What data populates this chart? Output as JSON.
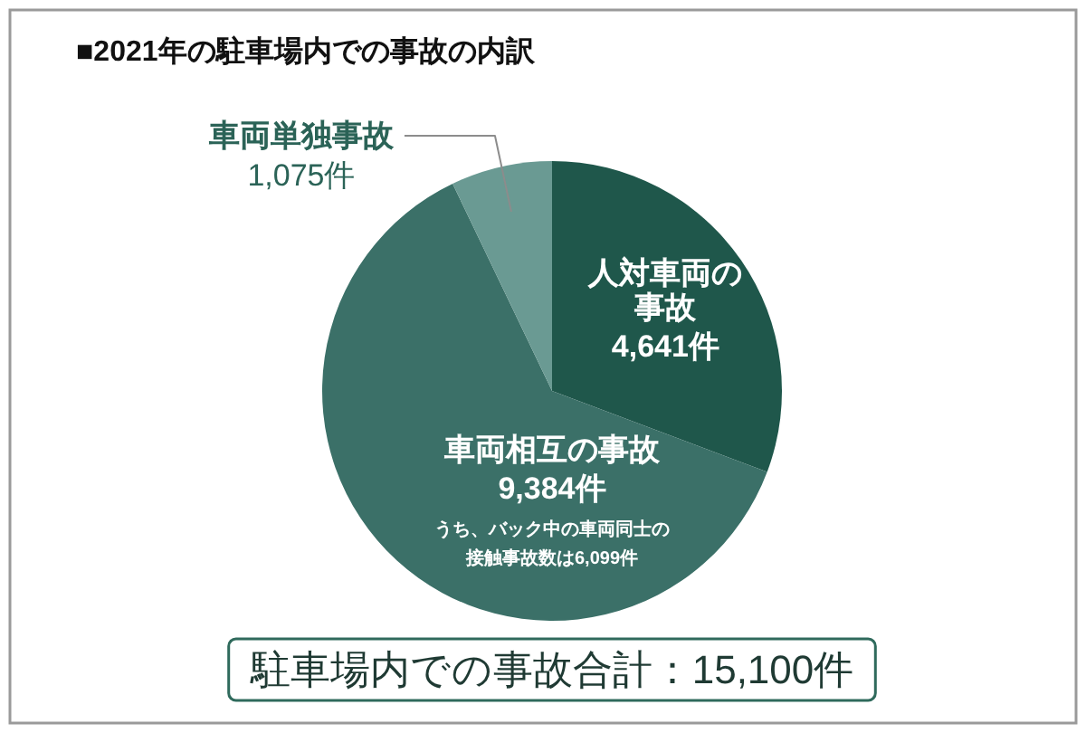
{
  "chart_data": {
    "type": "pie",
    "title": "■2021年の駐車場内での事故の内訳",
    "categories": [
      "人対車両の事故",
      "車両相互の事故",
      "車両単独事故"
    ],
    "values": [
      4641,
      9384,
      1075
    ],
    "colors": [
      "#1f574b",
      "#3b7068",
      "#6a9a93"
    ],
    "value_labels": [
      "4,641件",
      "9,384件",
      "1,075件"
    ],
    "annotations": [
      {
        "text": "うち、バック中の車両同士の接触事故数は6,099件",
        "x": "車両相互の事故"
      },
      "駐車場内での事故合計：15,100件"
    ]
  }
}
